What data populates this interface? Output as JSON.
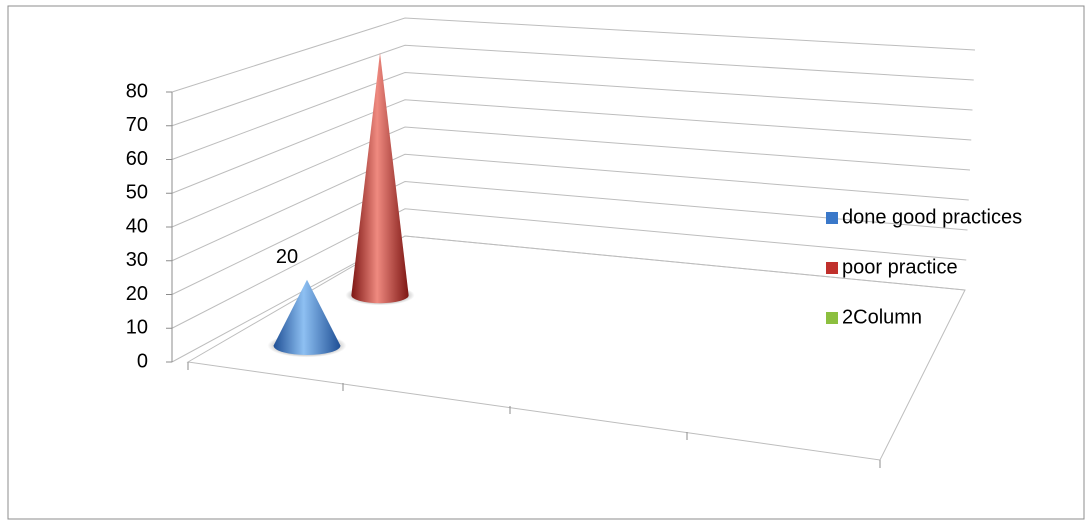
{
  "chart_data": {
    "type": "cone3d",
    "categories": [
      null
    ],
    "series": [
      {
        "name": "done good practices",
        "color": "#3a78c9",
        "values": [
          20
        ]
      },
      {
        "name": "poor practice",
        "color": "#c0302c",
        "values": [
          80
        ]
      },
      {
        "name": "2Column",
        "color": "#8cbf3f",
        "values": [
          null
        ]
      }
    ],
    "data_labels": [
      true,
      false,
      false
    ],
    "ylim": [
      0,
      80
    ],
    "yticks": [
      0,
      10,
      20,
      30,
      40,
      50,
      60,
      70,
      80
    ],
    "grid": true,
    "legend": "right"
  }
}
